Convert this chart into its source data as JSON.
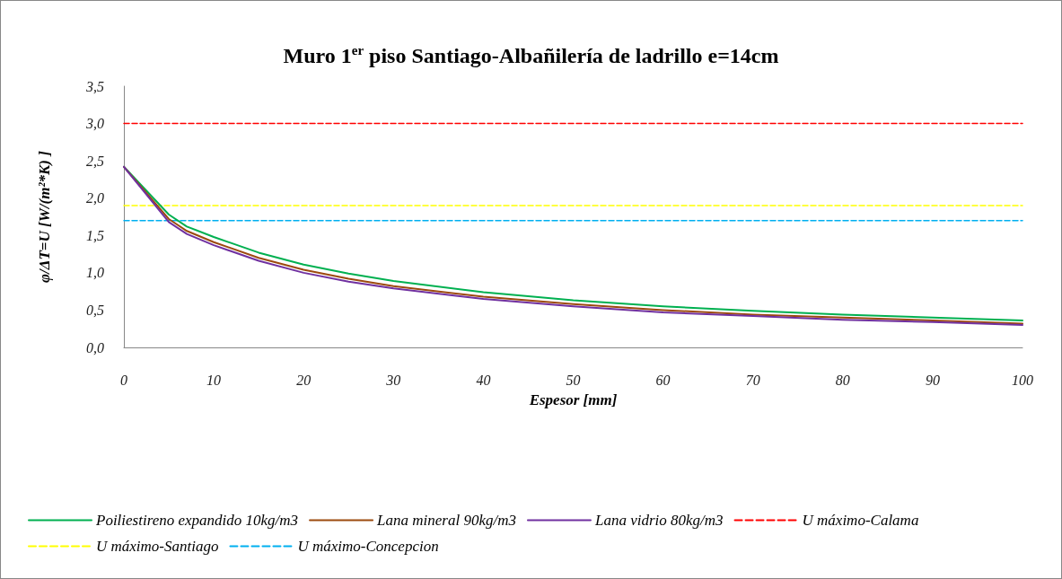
{
  "chart_data": {
    "type": "line",
    "title": "Muro 1$^{er}$ piso Santiago-Albañilería de ladrillo e=14cm",
    "xlabel": "Espesor [mm]",
    "ylabel": "φ/ΔT=U [W/(m²*K) ]",
    "xlim": [
      0,
      100
    ],
    "xticks": [
      0,
      10,
      20,
      30,
      40,
      50,
      60,
      70,
      80,
      90,
      100
    ],
    "ylim": [
      0,
      3.5
    ],
    "yticks": [
      {
        "value": 0,
        "label": "0,0"
      },
      {
        "value": 0.5,
        "label": "0,5"
      },
      {
        "value": 1,
        "label": "1,0"
      },
      {
        "value": 1.5,
        "label": "1,5"
      },
      {
        "value": 2,
        "label": "2,0"
      },
      {
        "value": 2.5,
        "label": "2,5"
      },
      {
        "value": 3,
        "label": "3,0"
      },
      {
        "value": 3.5,
        "label": "3,5"
      }
    ],
    "grid": false,
    "legend": "bottom",
    "marker": "none",
    "series": [
      {
        "name": "Poiliestireno expandido 10kg/m3",
        "color": "#00b050",
        "line_style": "solid",
        "x": [
          0,
          5,
          7,
          10,
          15,
          20,
          25,
          30,
          40,
          50,
          60,
          70,
          80,
          90,
          100
        ],
        "values": [
          2.42,
          1.78,
          1.62,
          1.48,
          1.27,
          1.11,
          0.99,
          0.89,
          0.74,
          0.63,
          0.55,
          0.49,
          0.44,
          0.4,
          0.36
        ]
      },
      {
        "name": "Lana mineral 90kg/m3",
        "color": "#9c4a0e",
        "line_style": "solid",
        "x": [
          0,
          5,
          7,
          10,
          15,
          20,
          25,
          30,
          40,
          50,
          60,
          70,
          80,
          90,
          100
        ],
        "values": [
          2.42,
          1.72,
          1.56,
          1.41,
          1.2,
          1.04,
          0.92,
          0.82,
          0.68,
          0.58,
          0.5,
          0.44,
          0.4,
          0.36,
          0.32
        ]
      },
      {
        "name": "Lana vidrio 80kg/m3",
        "color": "#7030a0",
        "line_style": "solid",
        "x": [
          0,
          5,
          7,
          10,
          15,
          20,
          25,
          30,
          40,
          50,
          60,
          70,
          80,
          90,
          100
        ],
        "values": [
          2.42,
          1.68,
          1.52,
          1.37,
          1.16,
          1.0,
          0.88,
          0.79,
          0.65,
          0.55,
          0.47,
          0.42,
          0.37,
          0.34,
          0.3
        ]
      },
      {
        "name": "U máximo-Calama",
        "color": "#ff0000",
        "line_style": "dashed",
        "x": [
          0,
          100
        ],
        "values": [
          3,
          3
        ]
      },
      {
        "name": "U máximo-Santiago",
        "color": "#ffff00",
        "line_style": "dashed",
        "x": [
          0,
          100
        ],
        "values": [
          1.9,
          1.9
        ]
      },
      {
        "name": "U máximo-Concepcion",
        "color": "#00b0f0",
        "line_style": "dashed",
        "x": [
          0,
          100
        ],
        "values": [
          1.7,
          1.7
        ]
      }
    ]
  }
}
